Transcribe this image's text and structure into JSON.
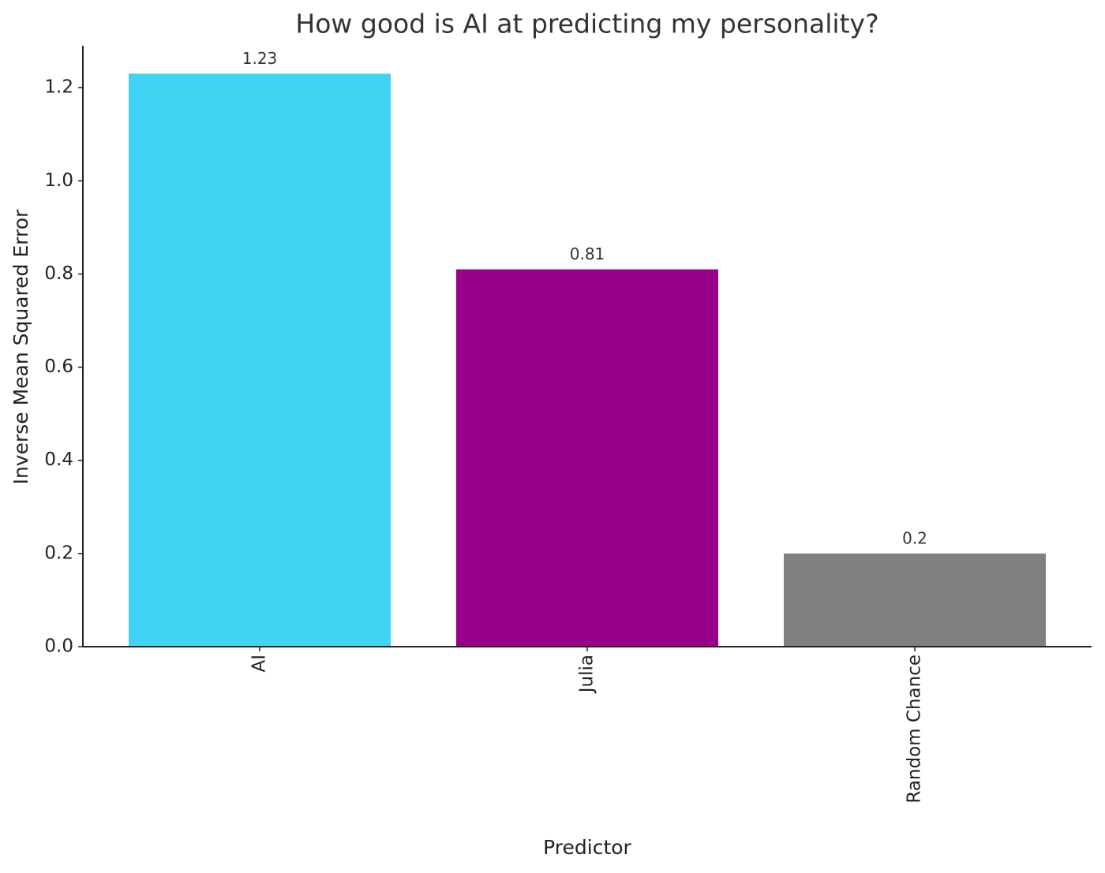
{
  "chart_data": {
    "type": "bar",
    "title": "How good is AI at predicting my personality?",
    "x_label": "Predictor",
    "y_label": "Inverse Mean Squared Error",
    "categories": [
      "AI",
      "Julia",
      "Random Chance"
    ],
    "values": [
      1.23,
      0.81,
      0.2
    ],
    "colors": [
      "#40d3f3",
      "#990088",
      "#808080"
    ],
    "ylim": [
      0,
      1.29
    ],
    "yticks": [
      {
        "value": 0,
        "label": "0.0"
      },
      0.2,
      0.4,
      0.6,
      0.8,
      {
        "value": 1,
        "label": "1.0"
      },
      1.2
    ],
    "grid": false
  }
}
